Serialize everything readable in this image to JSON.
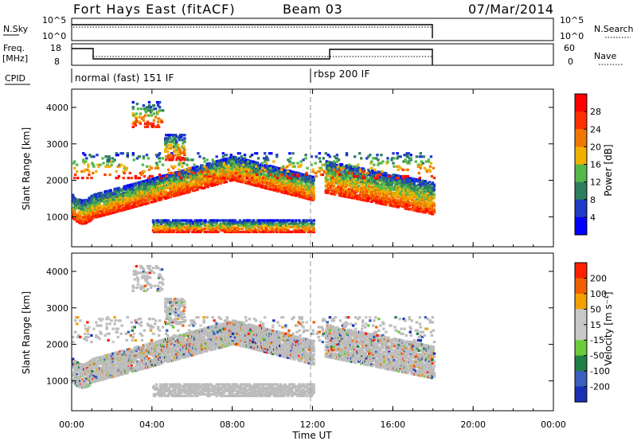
{
  "header": {
    "station": "Fort Hays East (fitACF)",
    "beam": "Beam 03",
    "date": "07/Mar/2014"
  },
  "params": {
    "nsky_label": "N.Sky",
    "nsearch_label": "N.Search",
    "noise_ticks": [
      "10^5",
      "10^0"
    ],
    "freq_label": "Freq.",
    "freq_unit": "[MHz]",
    "freq_ticks": [
      "18",
      "8"
    ],
    "nave_label": "Nave",
    "nave_ticks": [
      "60",
      "0"
    ],
    "cpid_label": "CPID",
    "cpid_segments": [
      {
        "name": "normal (fast) 151 IF",
        "start_hour": 0,
        "end_hour": 12
      },
      {
        "name": "rbsp 200 IF",
        "start_hour": 12,
        "end_hour": 18
      }
    ]
  },
  "colors": {
    "power": [
      "#0000ff",
      "#1e3cc8",
      "#2e7d5e",
      "#55b848",
      "#f0b000",
      "#f07800",
      "#ff3000",
      "#ff0000"
    ],
    "velocity": [
      "#1a2fb4",
      "#3a5fc0",
      "#1f7f46",
      "#6ccb3a",
      "#c8c8c8",
      "#c8c8c8",
      "#f0a000",
      "#f06000",
      "#ff2000"
    ],
    "ground_scatter": "#bcbcbc"
  },
  "chart_data": [
    {
      "type": "heatmap",
      "name": "power",
      "ylabel": "Slant Range [km]",
      "colorbar_label": "Power [dB]",
      "colorbar_ticks": [
        "28",
        "24",
        "20",
        "16",
        "12",
        "8",
        "4"
      ],
      "colorbar_range": [
        0,
        32
      ],
      "xlim_hours": [
        0,
        24
      ],
      "ylim_km": [
        180,
        4500
      ],
      "yticks": [
        "4000",
        "3000",
        "2000",
        "1000"
      ],
      "data_end_hour": 18
    },
    {
      "type": "heatmap",
      "name": "velocity",
      "ylabel": "Slant Range [km]",
      "colorbar_label": "Velocity [m s⁻¹]",
      "colorbar_ticks": [
        "200",
        "100",
        "50",
        "15",
        "-15",
        "-50",
        "-100",
        "-200"
      ],
      "colorbar_range": [
        -250,
        250
      ],
      "xlim_hours": [
        0,
        24
      ],
      "ylim_km": [
        180,
        4500
      ],
      "yticks": [
        "4000",
        "3000",
        "2000",
        "1000"
      ],
      "xticks": [
        "00:00",
        "04:00",
        "08:00",
        "12:00",
        "16:00",
        "20:00",
        "00:00"
      ],
      "xlabel": "Time UT",
      "data_end_hour": 18
    }
  ]
}
